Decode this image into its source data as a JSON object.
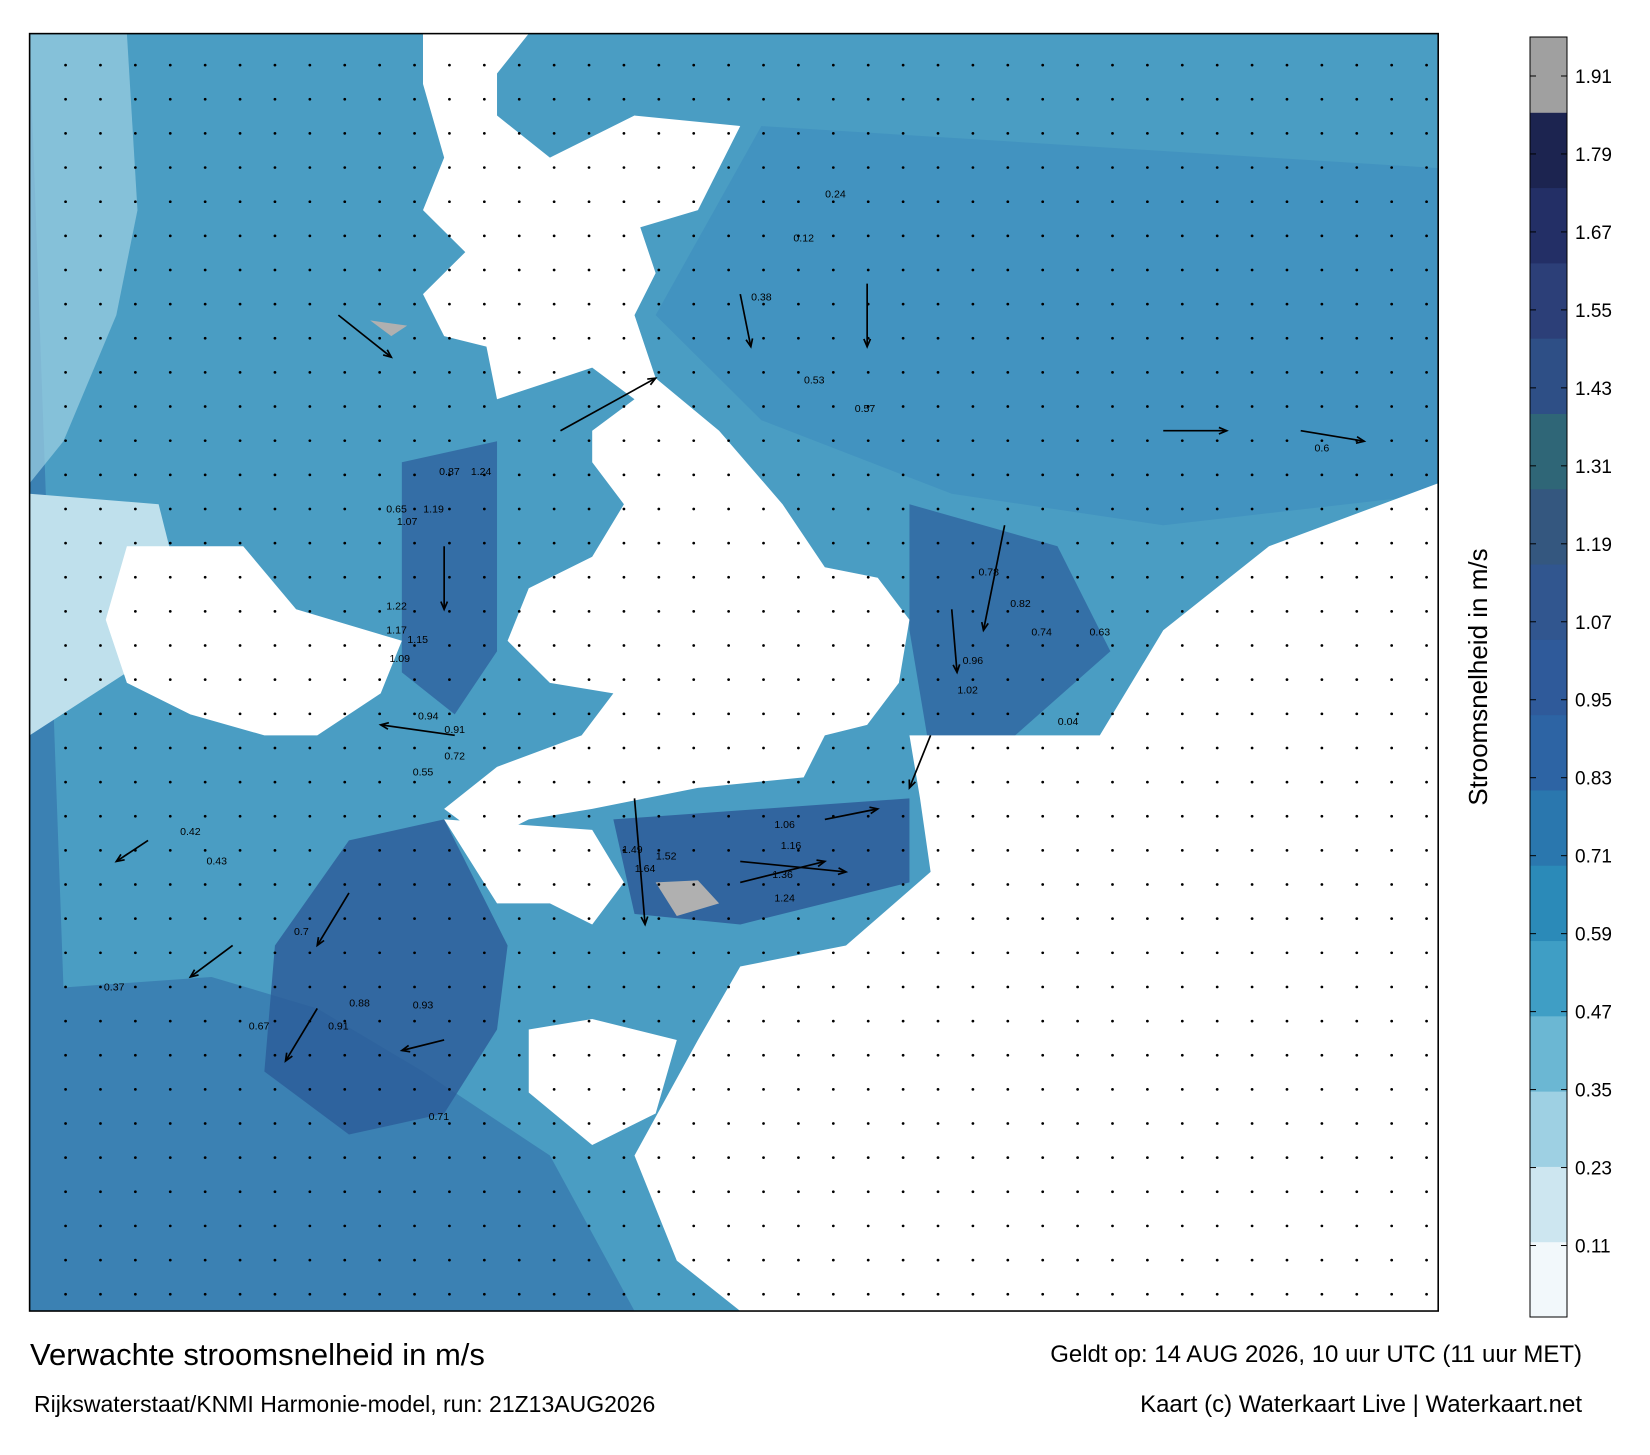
{
  "title": "Verwachte stroomsnelheid in m/s",
  "subtitle": "Rijkswaterstaat/KNMI Harmonie-model, run: 21Z13AUG2026",
  "valid_time": "Geldt op: 14 AUG 2026, 10 uur UTC (11 uur MET)",
  "credit": "Kaart (c) Waterkaart Live | Waterkaart.net",
  "colorbar": {
    "label": "Stroomsnelheid in m/s",
    "lim": [
      0,
      1.97
    ],
    "ticks": [
      0.11,
      0.23,
      0.35,
      0.47,
      0.59,
      0.71,
      0.83,
      0.95,
      1.07,
      1.19,
      1.31,
      1.43,
      1.55,
      1.67,
      1.79,
      1.91
    ],
    "colors": [
      "#f2f8fb",
      "#cde6f0",
      "#9ed0e3",
      "#6bb7d3",
      "#3f9ec5",
      "#2b8ab8",
      "#2a77ae",
      "#2d64a4",
      "#2f5a9a",
      "#31568f",
      "#34577f",
      "#2f6677",
      "#2e4f86",
      "#2c3f78",
      "#232f66",
      "#1c2450",
      "#a0a0a0"
    ]
  },
  "map_labels": [
    "1.19",
    "1.07",
    "0.87",
    "1.24",
    "0.65",
    "1.22",
    "1.17",
    "1.15",
    "1.09",
    "0.94",
    "0.91",
    "0.72",
    "0.55",
    "1.49",
    "1.64",
    "1.52",
    "1.36",
    "1.24",
    "1.16",
    "1.06",
    "0.96",
    "1.02",
    "0.82",
    "0.78",
    "0.74",
    "0.63",
    "0.7",
    "0.88",
    "0.91",
    "0.93",
    "0.71",
    "0.67",
    "0.37",
    "0.38",
    "0.42",
    "0.43",
    "0.53",
    "0.57",
    "0.6",
    "0.24",
    "0.12",
    "0.04"
  ]
}
